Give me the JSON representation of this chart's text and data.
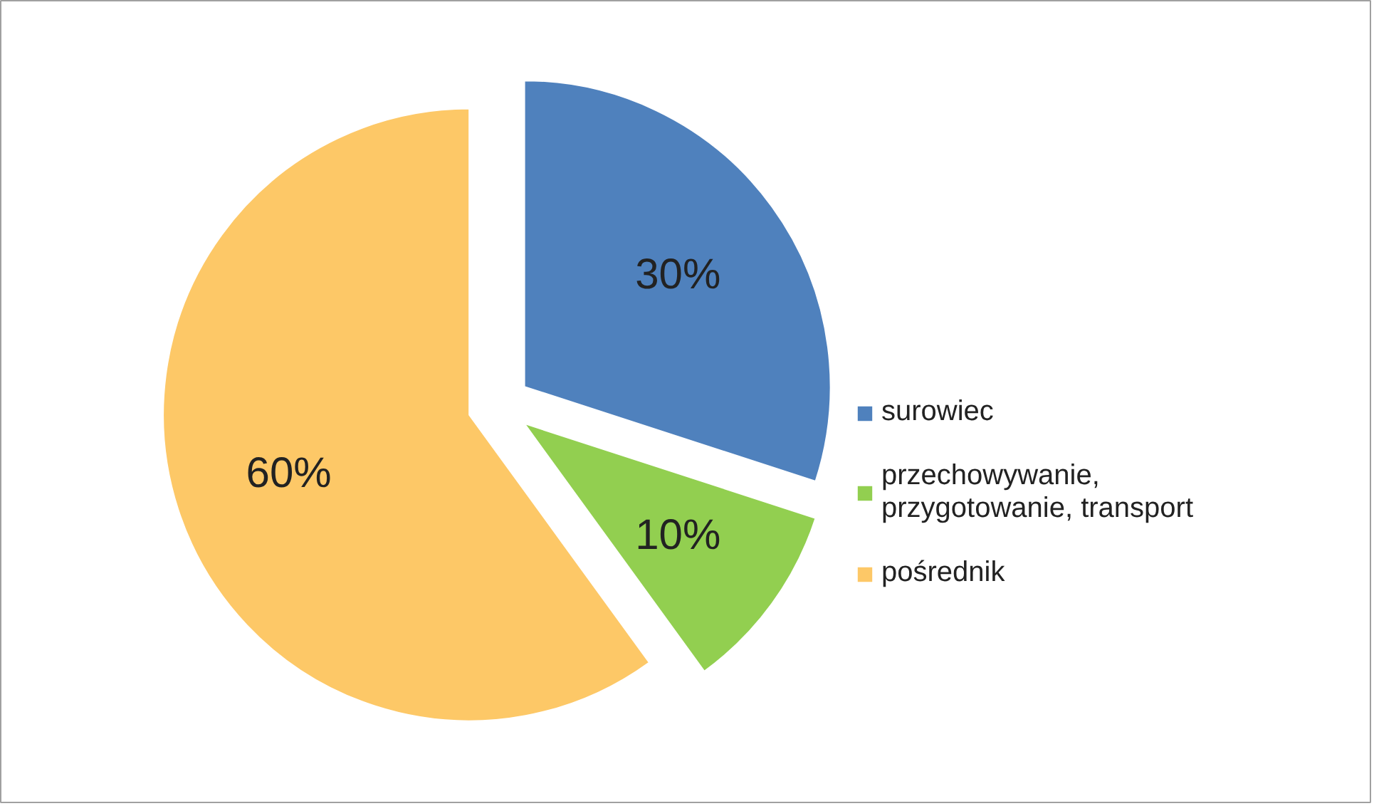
{
  "chart_data": {
    "type": "pie",
    "categories": [
      "surowiec",
      "przechowywanie, przygotowanie, transport",
      "pośrednik"
    ],
    "values": [
      30,
      10,
      60
    ],
    "colors": [
      "#4f81bd",
      "#92cf50",
      "#fdc867"
    ],
    "value_labels": [
      "30%",
      "10%",
      "60%"
    ],
    "legend": "right"
  }
}
